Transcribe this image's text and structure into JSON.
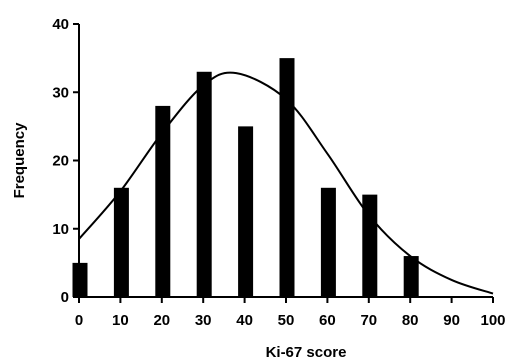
{
  "chart_data": {
    "type": "bar",
    "xlabel": "Ki-67 score",
    "ylabel": "Frequency",
    "xlim": [
      0,
      100
    ],
    "ylim": [
      0,
      40
    ],
    "x_ticks": [
      0,
      10,
      20,
      30,
      40,
      50,
      60,
      70,
      80,
      90,
      100
    ],
    "y_ticks": [
      0,
      10,
      20,
      30,
      40
    ],
    "grid": false,
    "bar_color": "#000000",
    "bars": [
      {
        "x": 0,
        "value": 5
      },
      {
        "x": 10,
        "value": 16
      },
      {
        "x": 20,
        "value": 28
      },
      {
        "x": 30,
        "value": 33
      },
      {
        "x": 40,
        "value": 25
      },
      {
        "x": 50,
        "value": 35
      },
      {
        "x": 60,
        "value": 16
      },
      {
        "x": 70,
        "value": 15
      },
      {
        "x": 80,
        "value": 6
      }
    ],
    "fit_curve": {
      "type": "normal",
      "peak_x": 38,
      "peak_y": 32.8,
      "points": [
        [
          0,
          8.5
        ],
        [
          10,
          15.5
        ],
        [
          20,
          24
        ],
        [
          30,
          31
        ],
        [
          38,
          32.8
        ],
        [
          50,
          29
        ],
        [
          60,
          21
        ],
        [
          70,
          12
        ],
        [
          80,
          6
        ],
        [
          90,
          2.5
        ],
        [
          100,
          0.5
        ]
      ]
    }
  }
}
